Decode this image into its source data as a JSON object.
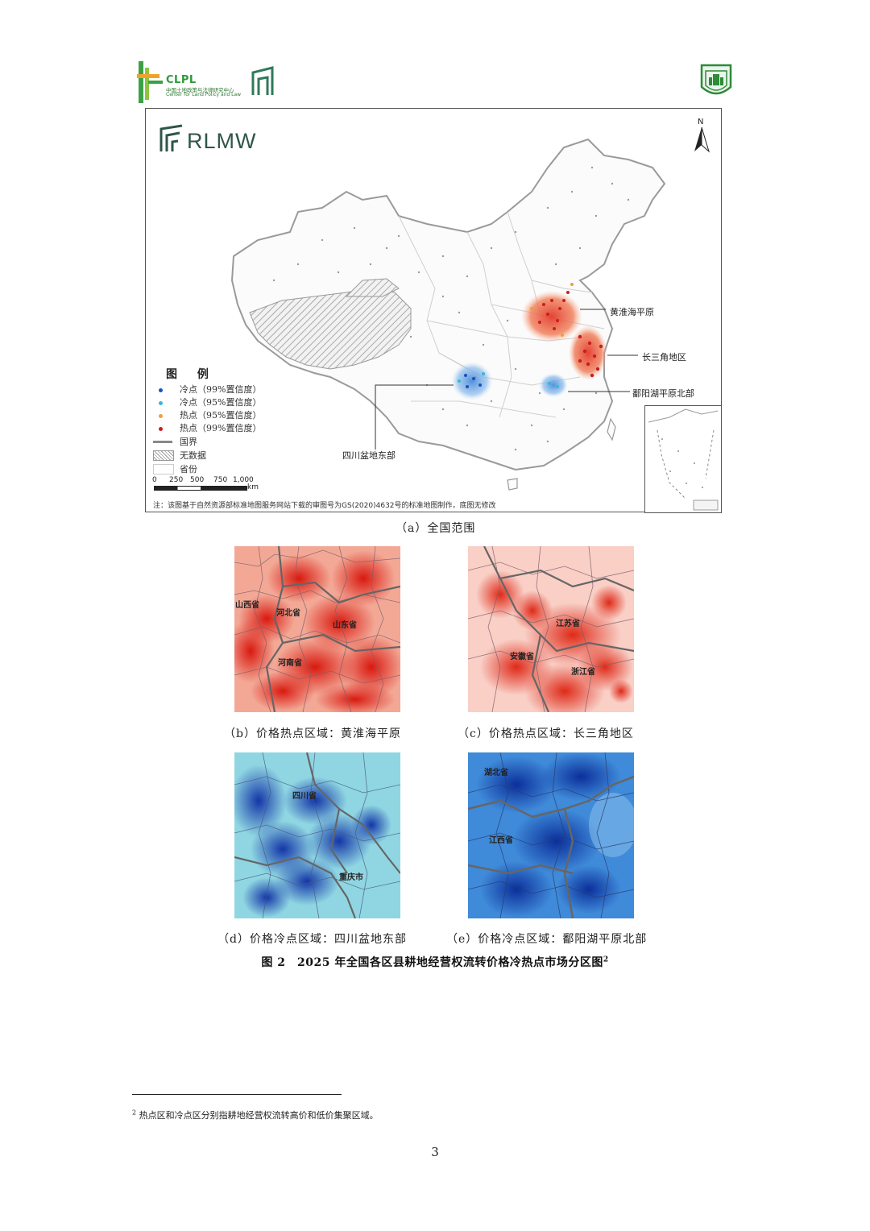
{
  "header": {
    "clpl_abbr": "CLPL",
    "clpl_cn": "中国土地政策与法律研究中心",
    "clpl_en": "Center for Land Policy and Law"
  },
  "map": {
    "brand": "RLMW",
    "north_label": "N",
    "legend": {
      "title": "图 例",
      "items": [
        {
          "label": "冷点（99%置信度）",
          "color": "#1f4fbf"
        },
        {
          "label": "冷点（95%置信度）",
          "color": "#37b7d8"
        },
        {
          "label": "热点（95%置信度）",
          "color": "#e8a23a"
        },
        {
          "label": "热点（99%置信度）",
          "color": "#c81f1f"
        },
        {
          "label": "国界",
          "color": "#888888"
        },
        {
          "label": "无数据",
          "color": "#aaaaaa"
        },
        {
          "label": "省份",
          "color": "#dddddd"
        }
      ]
    },
    "scale": {
      "ticks": [
        "0",
        "250",
        "500",
        "750",
        "1,000"
      ],
      "unit": "km"
    },
    "regions": {
      "huanghuaihai": "黄淮海平原",
      "yangtze_delta": "长三角地区",
      "poyang": "鄱阳湖平原北部",
      "sichuan": "四川盆地东部"
    },
    "note": "注：该图基于自然资源部标准地图服务网站下载的审图号为GS(2020)4632号的标准地图制作，底图无修改"
  },
  "captions": {
    "a": "（a）全国范围",
    "b": "（b）价格热点区域：黄淮海平原",
    "c": "（c）价格热点区域：长三角地区",
    "d": "（d）价格冷点区域：四川盆地东部",
    "e": "（e）价格冷点区域：鄱阳湖平原北部"
  },
  "panels": {
    "b": [
      "山西省",
      "河北省",
      "山东省",
      "河南省"
    ],
    "c": [
      "江苏省",
      "安徽省",
      "浙江省"
    ],
    "d": [
      "四川省",
      "重庆市"
    ],
    "e": [
      "湖北省",
      "江西省"
    ]
  },
  "figure_title": "图 2　2025 年全国各区县耕地经营权流转价格冷热点市场分区图",
  "figure_title_sup": "2",
  "footnote": {
    "marker": "2",
    "text": "热点区和冷点区分别指耕地经营权流转高价和低价集聚区域。"
  },
  "page_number": "3"
}
